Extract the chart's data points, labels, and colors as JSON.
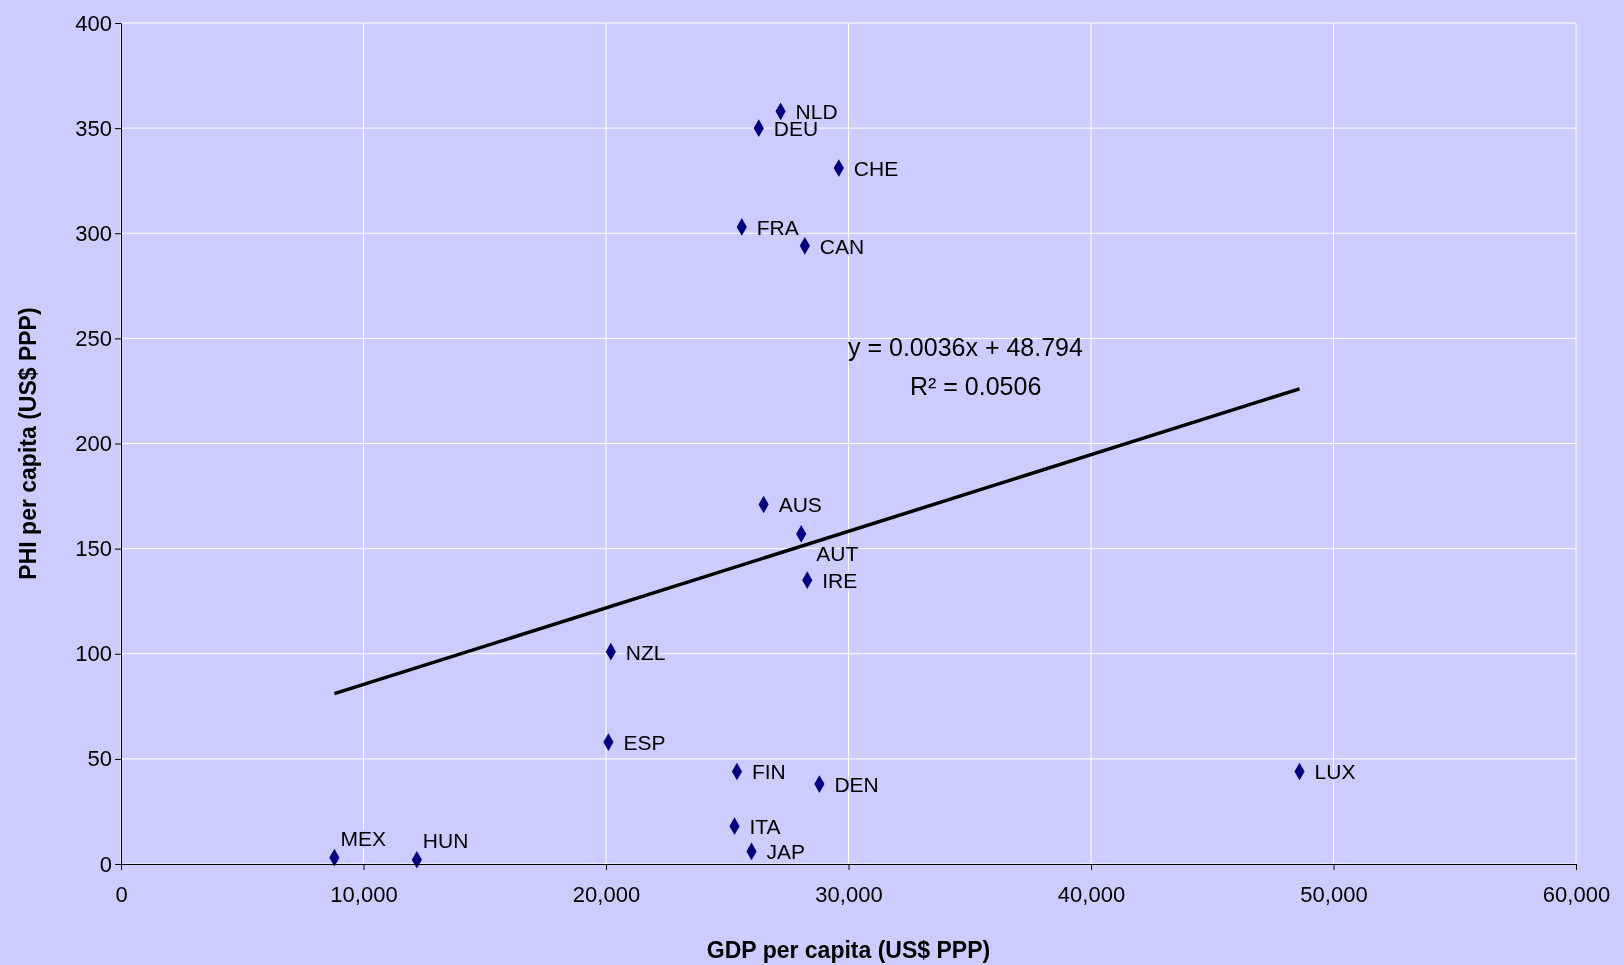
{
  "chart_data": {
    "type": "scatter",
    "xlabel": "GDP per capita (US$ PPP)",
    "ylabel": "PHI per capita (US$ PPP)",
    "xlim": [
      0,
      60000
    ],
    "ylim": [
      0,
      400
    ],
    "xticks": [
      0,
      {
        "value": 10000,
        "label": "10,000"
      },
      {
        "value": 20000,
        "label": "20,000"
      },
      {
        "value": 30000,
        "label": "30,000"
      },
      {
        "value": 40000,
        "label": "40,000"
      },
      {
        "value": 50000,
        "label": "50,000"
      },
      {
        "value": 60000,
        "label": "60,000"
      }
    ],
    "yticks": [
      0,
      50,
      100,
      150,
      200,
      250,
      300,
      350,
      400
    ],
    "grid": true,
    "series": [
      {
        "type": "scatter",
        "color": "#000080",
        "marker": "diamond",
        "x": [
          27200,
          26300,
          29600,
          25600,
          28200,
          26500,
          28050,
          28300,
          20200,
          20100,
          25400,
          28800,
          48600,
          25300,
          26000,
          8800,
          12200
        ],
        "values": [
          358,
          350,
          331,
          303,
          294,
          171,
          157,
          135,
          101,
          58,
          44,
          38,
          44,
          18,
          6,
          3,
          2
        ]
      },
      {
        "type": "line",
        "color": "#000000",
        "x": [
          8800,
          48600
        ],
        "values": [
          81,
          226
        ]
      }
    ],
    "annotations": [
      {
        "text": "NLD",
        "x": 27200,
        "y": 358
      },
      {
        "text": "DEU",
        "x": 26300,
        "y": 350
      },
      {
        "text": "CHE",
        "x": 29600,
        "y": 331
      },
      {
        "text": "FRA",
        "x": 25600,
        "y": 303
      },
      {
        "text": "CAN",
        "x": 28200,
        "y": 294
      },
      {
        "text": "AUS",
        "x": 26500,
        "y": 171
      },
      {
        "text": "AUT",
        "x": 28050,
        "y": 157
      },
      {
        "text": "IRE",
        "x": 28300,
        "y": 135
      },
      {
        "text": "NZL",
        "x": 20200,
        "y": 101
      },
      {
        "text": "ESP",
        "x": 20100,
        "y": 58
      },
      {
        "text": "FIN",
        "x": 25400,
        "y": 44
      },
      {
        "text": "DEN",
        "x": 28800,
        "y": 38
      },
      {
        "text": "LUX",
        "x": 48600,
        "y": 44
      },
      {
        "text": "ITA",
        "x": 25300,
        "y": 18
      },
      {
        "text": "JAP",
        "x": 26000,
        "y": 6
      },
      {
        "text": "MEX",
        "x": 8800,
        "y": 3
      },
      {
        "text": "HUN",
        "x": 12200,
        "y": 2
      },
      "y = 0.0036x + 48.794",
      "R² = 0.0506"
    ]
  }
}
